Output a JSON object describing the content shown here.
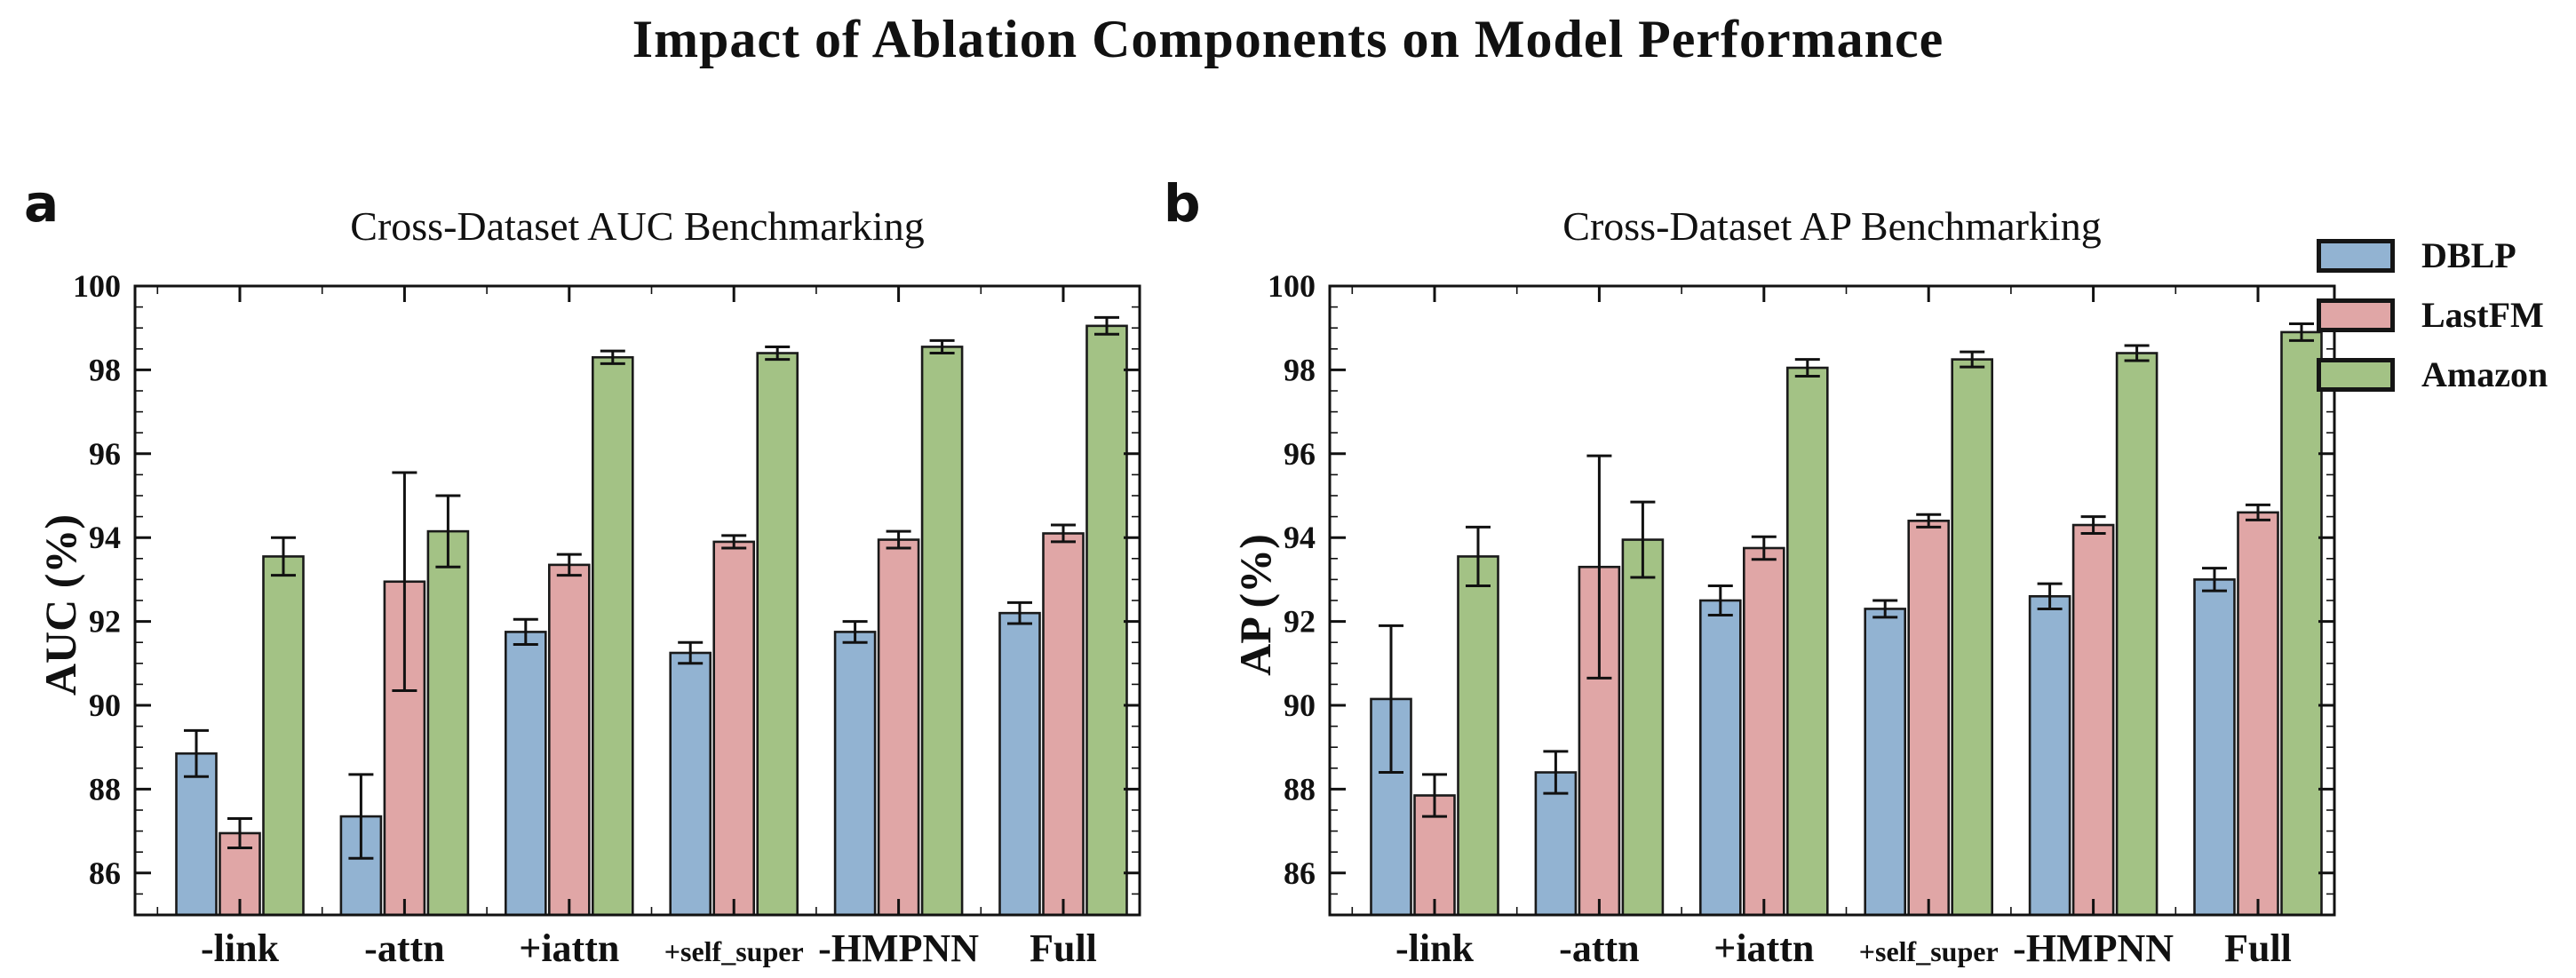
{
  "figure": {
    "title": "Impact of Ablation Components on Model Performance"
  },
  "colors": {
    "dblp": "#92B3D2",
    "lastfm": "#E0A6A6",
    "amazon": "#A3C285",
    "bar_edge": "#1a1a1a",
    "axis": "#111111"
  },
  "legend": {
    "items": [
      {
        "label": "DBLP",
        "color": "#92B3D2"
      },
      {
        "label": "LastFM",
        "color": "#E0A6A6"
      },
      {
        "label": "Amazon",
        "color": "#A3C285"
      }
    ]
  },
  "chart_data": [
    {
      "type": "bar",
      "panel_label": "a",
      "title": "Cross-Dataset AUC Benchmarking",
      "xlabel": "",
      "ylabel": "AUC (%)",
      "ylim": [
        85,
        100
      ],
      "yticks": [
        86,
        88,
        90,
        92,
        94,
        96,
        98,
        100
      ],
      "ytick_minor_step": 0.5,
      "grid": false,
      "legend_position": "outside-right",
      "categories": [
        "-link",
        "-attn",
        "+iattn",
        "+self_super",
        "-HMPNN",
        "Full"
      ],
      "series": [
        {
          "name": "DBLP",
          "color": "#92B3D2",
          "values": [
            88.85,
            87.35,
            91.75,
            91.25,
            91.75,
            92.2
          ],
          "errors": [
            0.55,
            1.0,
            0.3,
            0.25,
            0.25,
            0.25
          ]
        },
        {
          "name": "LastFM",
          "color": "#E0A6A6",
          "values": [
            86.95,
            92.95,
            93.35,
            93.9,
            93.95,
            94.1
          ],
          "errors": [
            0.35,
            2.6,
            0.25,
            0.15,
            0.2,
            0.2
          ]
        },
        {
          "name": "Amazon",
          "color": "#A3C285",
          "values": [
            93.55,
            94.15,
            98.3,
            98.4,
            98.55,
            99.05
          ],
          "errors": [
            0.45,
            0.85,
            0.15,
            0.15,
            0.15,
            0.2
          ]
        }
      ]
    },
    {
      "type": "bar",
      "panel_label": "b",
      "title": "Cross-Dataset AP Benchmarking",
      "xlabel": "",
      "ylabel": "AP (%)",
      "ylim": [
        85,
        100
      ],
      "yticks": [
        86,
        88,
        90,
        92,
        94,
        96,
        98,
        100
      ],
      "ytick_minor_step": 0.5,
      "grid": false,
      "legend_position": "outside-right",
      "categories": [
        "-link",
        "-attn",
        "+iattn",
        "+self_super",
        "-HMPNN",
        "Full"
      ],
      "series": [
        {
          "name": "DBLP",
          "color": "#92B3D2",
          "values": [
            90.15,
            88.4,
            92.5,
            92.3,
            92.6,
            93.0
          ],
          "errors": [
            1.75,
            0.5,
            0.35,
            0.2,
            0.3,
            0.27
          ]
        },
        {
          "name": "LastFM",
          "color": "#E0A6A6",
          "values": [
            87.85,
            93.3,
            93.75,
            94.4,
            94.3,
            94.6
          ],
          "errors": [
            0.5,
            2.65,
            0.27,
            0.15,
            0.2,
            0.18
          ]
        },
        {
          "name": "Amazon",
          "color": "#A3C285",
          "values": [
            93.55,
            93.95,
            98.05,
            98.25,
            98.4,
            98.9
          ],
          "errors": [
            0.7,
            0.9,
            0.2,
            0.18,
            0.18,
            0.2
          ]
        }
      ]
    }
  ]
}
